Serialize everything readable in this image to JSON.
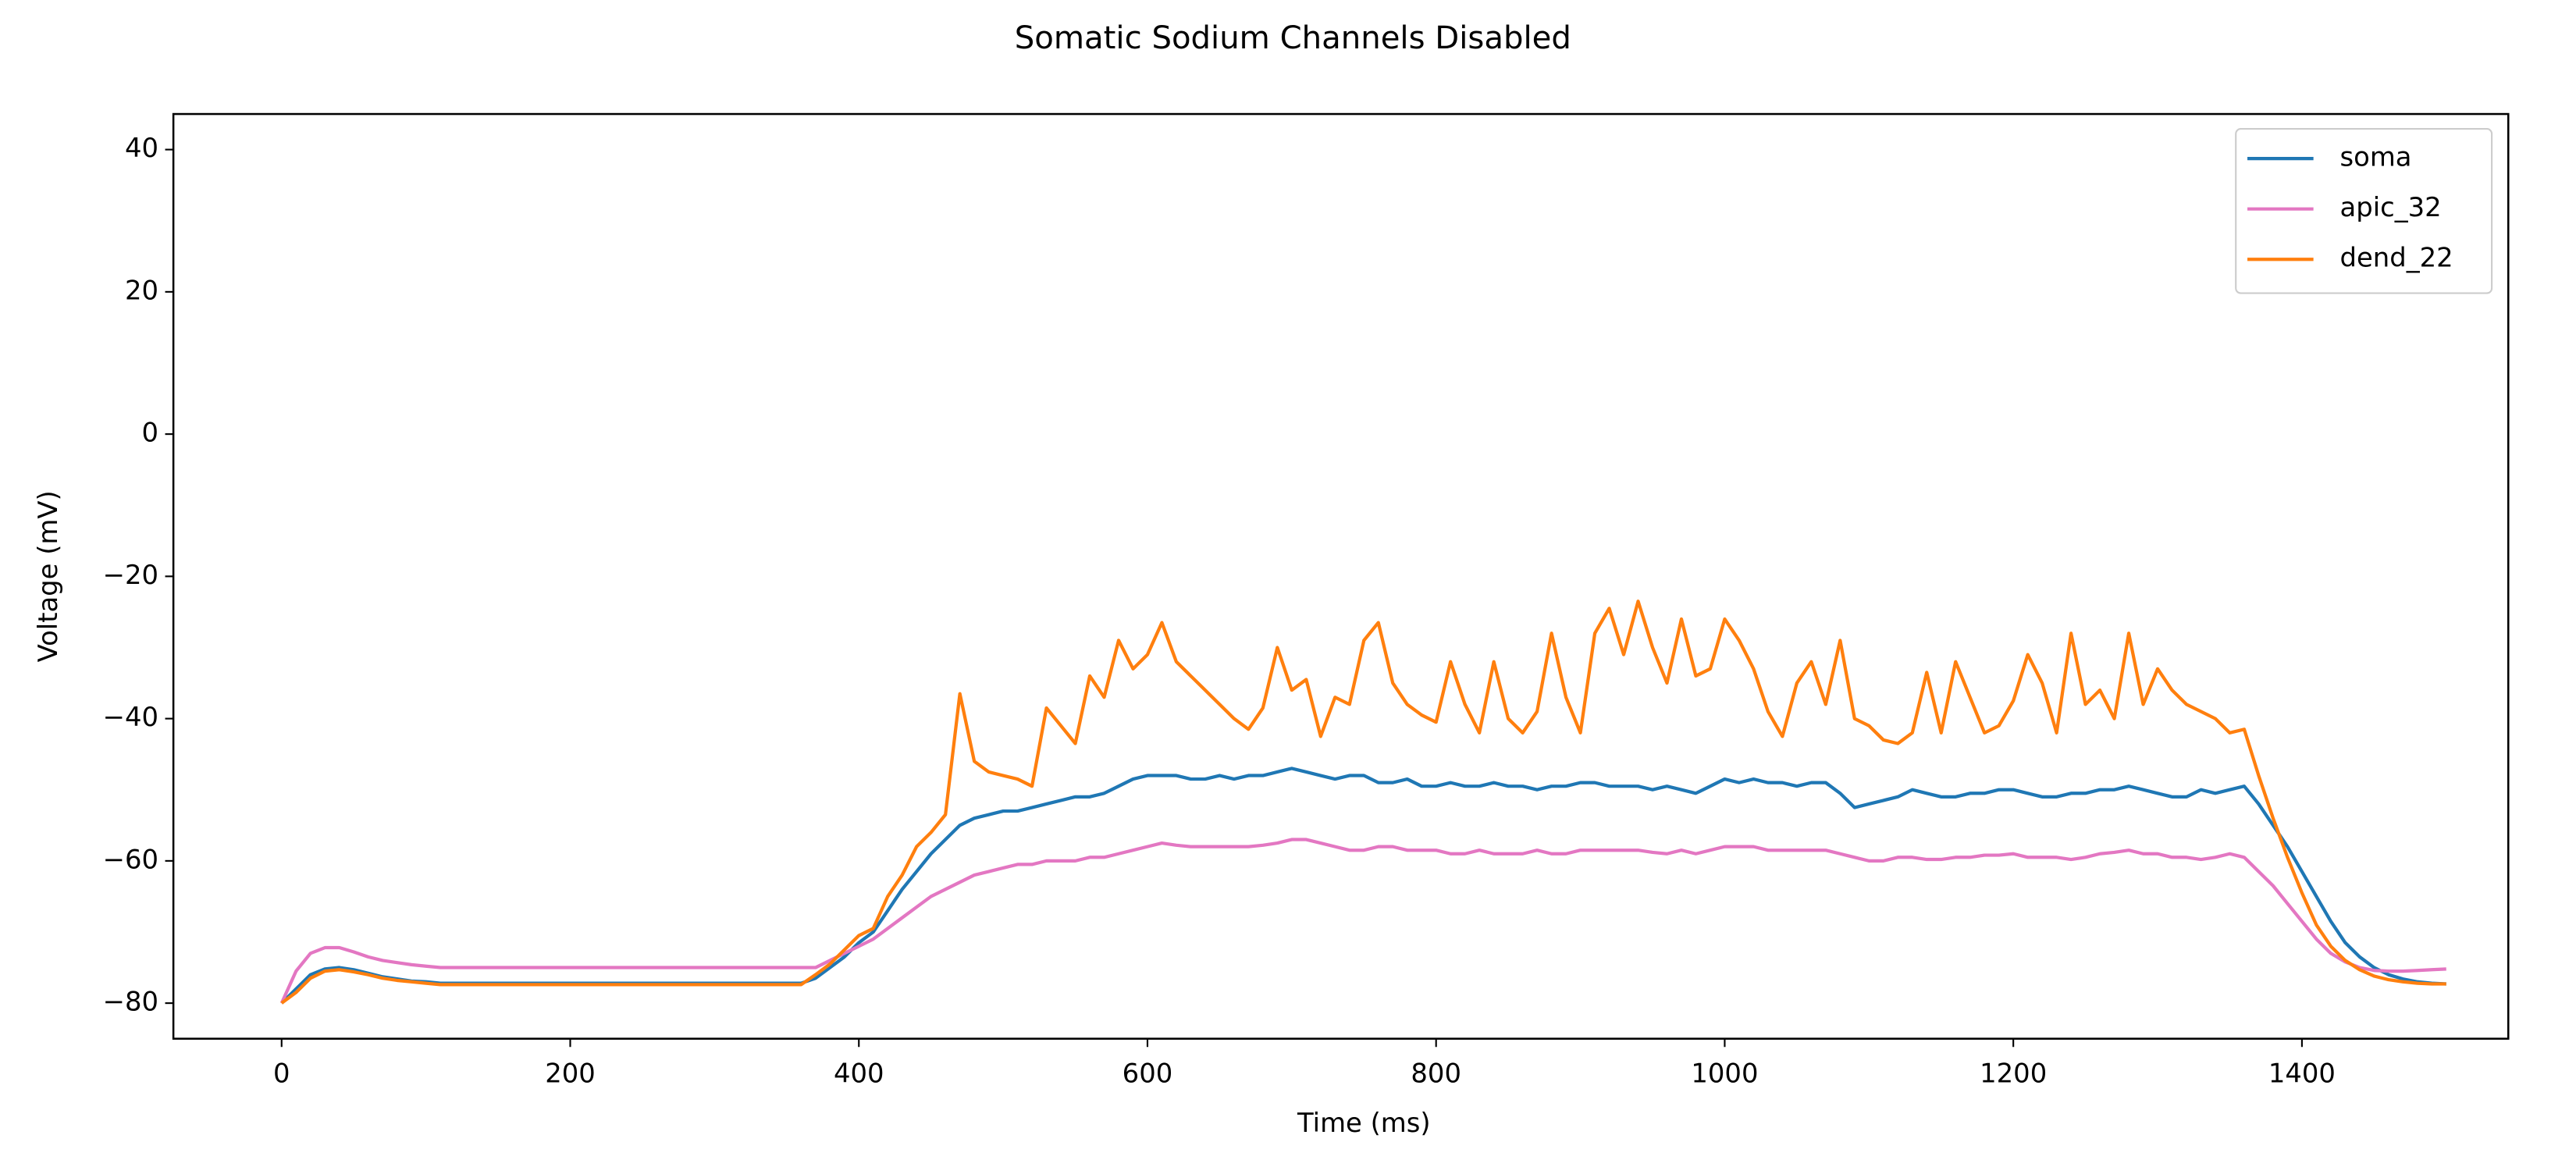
{
  "chart_data": {
    "type": "line",
    "title": "Somatic Sodium Channels Disabled",
    "xlabel": "Time (ms)",
    "ylabel": "Voltage (mV)",
    "x": [
      0,
      10,
      20,
      30,
      40,
      50,
      60,
      70,
      80,
      90,
      100,
      110,
      120,
      130,
      140,
      150,
      160,
      170,
      180,
      190,
      200,
      210,
      220,
      230,
      240,
      250,
      260,
      270,
      280,
      290,
      300,
      310,
      320,
      330,
      340,
      350,
      360,
      370,
      380,
      390,
      400,
      410,
      420,
      430,
      440,
      450,
      460,
      470,
      480,
      490,
      500,
      510,
      520,
      530,
      540,
      550,
      560,
      570,
      580,
      590,
      600,
      610,
      620,
      630,
      640,
      650,
      660,
      670,
      680,
      690,
      700,
      710,
      720,
      730,
      740,
      750,
      760,
      770,
      780,
      790,
      800,
      810,
      820,
      830,
      840,
      850,
      860,
      870,
      880,
      890,
      900,
      910,
      920,
      930,
      940,
      950,
      960,
      970,
      980,
      990,
      1000,
      1010,
      1020,
      1030,
      1040,
      1050,
      1060,
      1070,
      1080,
      1090,
      1100,
      1110,
      1120,
      1130,
      1140,
      1150,
      1160,
      1170,
      1180,
      1190,
      1200,
      1210,
      1220,
      1230,
      1240,
      1250,
      1260,
      1270,
      1280,
      1290,
      1300,
      1310,
      1320,
      1330,
      1340,
      1350,
      1360,
      1370,
      1380,
      1390,
      1400,
      1410,
      1420,
      1430,
      1440,
      1450,
      1460,
      1470,
      1480,
      1490,
      1500
    ],
    "series": [
      {
        "name": "soma",
        "color": "#1f77b4",
        "values": [
          -80,
          -78,
          -76,
          -75.2,
          -75,
          -75.3,
          -75.8,
          -76.3,
          -76.6,
          -76.9,
          -77,
          -77.2,
          -77.2,
          -77.2,
          -77.2,
          -77.2,
          -77.2,
          -77.2,
          -77.2,
          -77.2,
          -77.2,
          -77.2,
          -77.2,
          -77.2,
          -77.2,
          -77.2,
          -77.2,
          -77.2,
          -77.2,
          -77.2,
          -77.2,
          -77.2,
          -77.2,
          -77.2,
          -77.2,
          -77.2,
          -77.2,
          -76.5,
          -75,
          -73.5,
          -71.5,
          -70,
          -67,
          -64,
          -61.5,
          -59,
          -57,
          -55,
          -54,
          -53.5,
          -53,
          -53,
          -52.5,
          -52,
          -51.5,
          -51,
          -51,
          -50.5,
          -49.5,
          -48.5,
          -48,
          -48,
          -48,
          -48.5,
          -48.5,
          -48,
          -48.5,
          -48,
          -48,
          -47.5,
          -47,
          -47.5,
          -48,
          -48.5,
          -48,
          -48,
          -49,
          -49,
          -48.5,
          -49.5,
          -49.5,
          -49,
          -49.5,
          -49.5,
          -49,
          -49.5,
          -49.5,
          -50,
          -49.5,
          -49.5,
          -49,
          -49,
          -49.5,
          -49.5,
          -49.5,
          -50,
          -49.5,
          -50,
          -50.5,
          -49.5,
          -48.5,
          -49,
          -48.5,
          -49,
          -49,
          -49.5,
          -49,
          -49,
          -50.5,
          -52.5,
          -52,
          -51.5,
          -51,
          -50,
          -50.5,
          -51,
          -51,
          -50.5,
          -50.5,
          -50,
          -50,
          -50.5,
          -51,
          -51,
          -50.5,
          -50.5,
          -50,
          -50,
          -49.5,
          -50,
          -50.5,
          -51,
          -51,
          -50,
          -50.5,
          -50,
          -49.5,
          -52,
          -55,
          -58,
          -61.5,
          -65,
          -68.5,
          -71.5,
          -73.5,
          -75,
          -76,
          -76.6,
          -77,
          -77.2,
          -77.3
        ]
      },
      {
        "name": "apic_32",
        "color": "#e377c2",
        "values": [
          -80,
          -75.5,
          -73,
          -72.2,
          -72.2,
          -72.8,
          -73.5,
          -74,
          -74.3,
          -74.6,
          -74.8,
          -75,
          -75,
          -75,
          -75,
          -75,
          -75,
          -75,
          -75,
          -75,
          -75,
          -75,
          -75,
          -75,
          -75,
          -75,
          -75,
          -75,
          -75,
          -75,
          -75,
          -75,
          -75,
          -75,
          -75,
          -75,
          -75,
          -75,
          -74,
          -73,
          -72,
          -71,
          -69.5,
          -68,
          -66.5,
          -65,
          -64,
          -63,
          -62,
          -61.5,
          -61,
          -60.5,
          -60.5,
          -60,
          -60,
          -60,
          -59.5,
          -59.5,
          -59,
          -58.5,
          -58,
          -57.5,
          -57.8,
          -58,
          -58,
          -58,
          -58,
          -58,
          -57.8,
          -57.5,
          -57,
          -57,
          -57.5,
          -58,
          -58.5,
          -58.5,
          -58,
          -58,
          -58.5,
          -58.5,
          -58.5,
          -59,
          -59,
          -58.5,
          -59,
          -59,
          -59,
          -58.5,
          -59,
          -59,
          -58.5,
          -58.5,
          -58.5,
          -58.5,
          -58.5,
          -58.8,
          -59,
          -58.5,
          -59,
          -58.5,
          -58,
          -58,
          -58,
          -58.5,
          -58.5,
          -58.5,
          -58.5,
          -58.5,
          -59,
          -59.5,
          -60,
          -60,
          -59.5,
          -59.5,
          -59.8,
          -59.8,
          -59.5,
          -59.5,
          -59.2,
          -59.2,
          -59,
          -59.5,
          -59.5,
          -59.5,
          -59.8,
          -59.5,
          -59,
          -58.8,
          -58.5,
          -59,
          -59,
          -59.5,
          -59.5,
          -59.8,
          -59.5,
          -59,
          -59.5,
          -61.5,
          -63.5,
          -66,
          -68.5,
          -71,
          -73,
          -74.2,
          -75,
          -75.4,
          -75.5,
          -75.5,
          -75.4,
          -75.3,
          -75.2
        ]
      },
      {
        "name": "dend_22",
        "color": "#ff7f0e",
        "values": [
          -80,
          -78.5,
          -76.5,
          -75.5,
          -75.3,
          -75.6,
          -76,
          -76.5,
          -76.8,
          -77,
          -77.2,
          -77.4,
          -77.4,
          -77.4,
          -77.4,
          -77.4,
          -77.4,
          -77.4,
          -77.4,
          -77.4,
          -77.4,
          -77.4,
          -77.4,
          -77.4,
          -77.4,
          -77.4,
          -77.4,
          -77.4,
          -77.4,
          -77.4,
          -77.4,
          -77.4,
          -77.4,
          -77.4,
          -77.4,
          -77.4,
          -77.4,
          -76,
          -74.5,
          -72.5,
          -70.5,
          -69.5,
          -65,
          -62,
          -58,
          -56,
          -53.5,
          -36.5,
          -46,
          -47.5,
          -48,
          -48.5,
          -49.5,
          -38.5,
          -41,
          -43.5,
          -34,
          -37,
          -29,
          -33,
          -31,
          -26.5,
          -32,
          -34,
          -36,
          -38,
          -40,
          -41.5,
          -38.5,
          -30,
          -36,
          -34.5,
          -42.5,
          -37,
          -38,
          -29,
          -26.5,
          -35,
          -38,
          -39.5,
          -40.5,
          -32,
          -38,
          -42,
          -32,
          -40,
          -42,
          -39,
          -28,
          -37,
          -42,
          -28,
          -24.5,
          -31,
          -23.5,
          -30,
          -35,
          -26,
          -34,
          -33,
          -26,
          -29,
          -33,
          -39,
          -42.5,
          -35,
          -32,
          -38,
          -29,
          -40,
          -41,
          -43,
          -43.5,
          -42,
          -33.5,
          -42,
          -32,
          -37,
          -42,
          -41,
          -37.5,
          -31,
          -35,
          -42,
          -28,
          -38,
          -36,
          -40,
          -28,
          -38,
          -33,
          -36,
          -38,
          -39,
          -40,
          -42,
          -41.5,
          -48,
          -54,
          -59.5,
          -64.5,
          -69,
          -72,
          -74,
          -75.3,
          -76.2,
          -76.7,
          -77,
          -77.2,
          -77.3,
          -77.3
        ]
      }
    ],
    "xlim": [
      -75,
      1543
    ],
    "ylim": [
      -85,
      45
    ],
    "xticks": [
      0,
      200,
      400,
      600,
      800,
      1000,
      1200,
      1400
    ],
    "yticks": [
      {
        "value": -80,
        "label": "−80"
      },
      {
        "value": -60,
        "label": "−60"
      },
      {
        "value": -40,
        "label": "−40"
      },
      {
        "value": -20,
        "label": "−20"
      },
      0,
      20,
      40
    ],
    "legend": "upper right"
  }
}
